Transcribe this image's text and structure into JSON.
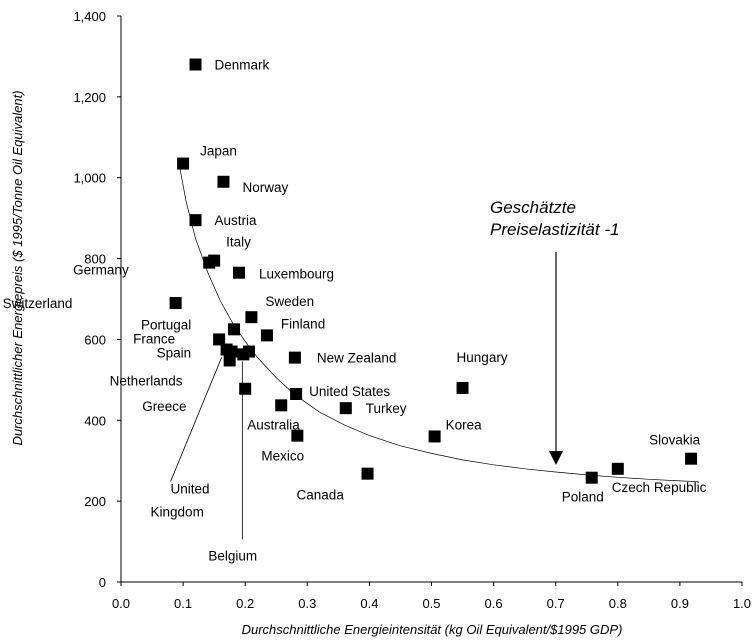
{
  "chart_data": {
    "type": "scatter",
    "title": "",
    "xlabel": "Durchschnittliche Energieintensität (kg Oil Equivalent/$1995 GDP)",
    "ylabel": "Durchschnittlicher Energiepreis  ($ 1995/Tonne Oil Equivalent)",
    "xlim": [
      0.0,
      1.0
    ],
    "ylim": [
      0,
      1400
    ],
    "xticks": [
      "0.0",
      "0.1",
      "0.2",
      "0.3",
      "0.4",
      "0.5",
      "0.6",
      "0.7",
      "0.8",
      "0.9",
      "1.0"
    ],
    "yticks": [
      "0",
      "200",
      "400",
      "600",
      "800",
      "1,000",
      "1,200",
      "1,400"
    ],
    "grid": false,
    "points": [
      {
        "label": "Denmark",
        "x": 0.12,
        "y": 1280
      },
      {
        "label": "Japan",
        "x": 0.1,
        "y": 1035
      },
      {
        "label": "Norway",
        "x": 0.165,
        "y": 990
      },
      {
        "label": "Austria",
        "x": 0.12,
        "y": 895
      },
      {
        "label": "Italy",
        "x": 0.15,
        "y": 795
      },
      {
        "label": "Germany",
        "x": 0.142,
        "y": 790
      },
      {
        "label": "Luxembourg",
        "x": 0.19,
        "y": 765
      },
      {
        "label": "Switzerland",
        "x": 0.088,
        "y": 690
      },
      {
        "label": "Sweden",
        "x": 0.21,
        "y": 655
      },
      {
        "label": "Portugal",
        "x": 0.182,
        "y": 625
      },
      {
        "label": "Finland",
        "x": 0.235,
        "y": 610
      },
      {
        "label": "France",
        "x": 0.158,
        "y": 600
      },
      {
        "label": "Spain",
        "x": 0.17,
        "y": 575
      },
      {
        "label": "Netherlands",
        "x": 0.175,
        "y": 548
      },
      {
        "label": "United Kingdom",
        "x": 0.178,
        "y": 570
      },
      {
        "label": "New Zealand",
        "x": 0.28,
        "y": 555
      },
      {
        "label": "Belgium",
        "x": 0.197,
        "y": 563
      },
      {
        "label": "",
        "x": 0.206,
        "y": 570
      },
      {
        "label": "Greece",
        "x": 0.2,
        "y": 478
      },
      {
        "label": "Hungary",
        "x": 0.55,
        "y": 480
      },
      {
        "label": "United States",
        "x": 0.282,
        "y": 465
      },
      {
        "label": "Australia",
        "x": 0.258,
        "y": 437
      },
      {
        "label": "Turkey",
        "x": 0.362,
        "y": 430
      },
      {
        "label": "Mexico",
        "x": 0.284,
        "y": 362
      },
      {
        "label": "Korea",
        "x": 0.505,
        "y": 360
      },
      {
        "label": "Slovakia",
        "x": 0.918,
        "y": 305
      },
      {
        "label": "Czech Republic",
        "x": 0.8,
        "y": 280
      },
      {
        "label": "Canada",
        "x": 0.397,
        "y": 268
      },
      {
        "label": "Poland",
        "x": 0.758,
        "y": 258
      }
    ],
    "curve_label": "Geschätzte Preiselastizität -1",
    "curve": [
      {
        "x": 0.094,
        "y": 1030
      },
      {
        "x": 0.105,
        "y": 940
      },
      {
        "x": 0.12,
        "y": 850
      },
      {
        "x": 0.14,
        "y": 765
      },
      {
        "x": 0.16,
        "y": 695
      },
      {
        "x": 0.18,
        "y": 640
      },
      {
        "x": 0.2,
        "y": 595
      },
      {
        "x": 0.22,
        "y": 555
      },
      {
        "x": 0.25,
        "y": 505
      },
      {
        "x": 0.28,
        "y": 463
      },
      {
        "x": 0.32,
        "y": 420
      },
      {
        "x": 0.36,
        "y": 388
      },
      {
        "x": 0.4,
        "y": 362
      },
      {
        "x": 0.45,
        "y": 337
      },
      {
        "x": 0.5,
        "y": 318
      },
      {
        "x": 0.55,
        "y": 302
      },
      {
        "x": 0.6,
        "y": 290
      },
      {
        "x": 0.65,
        "y": 280
      },
      {
        "x": 0.7,
        "y": 272
      },
      {
        "x": 0.75,
        "y": 265
      },
      {
        "x": 0.8,
        "y": 259
      },
      {
        "x": 0.85,
        "y": 254
      },
      {
        "x": 0.9,
        "y": 250
      },
      {
        "x": 0.93,
        "y": 248
      }
    ]
  }
}
